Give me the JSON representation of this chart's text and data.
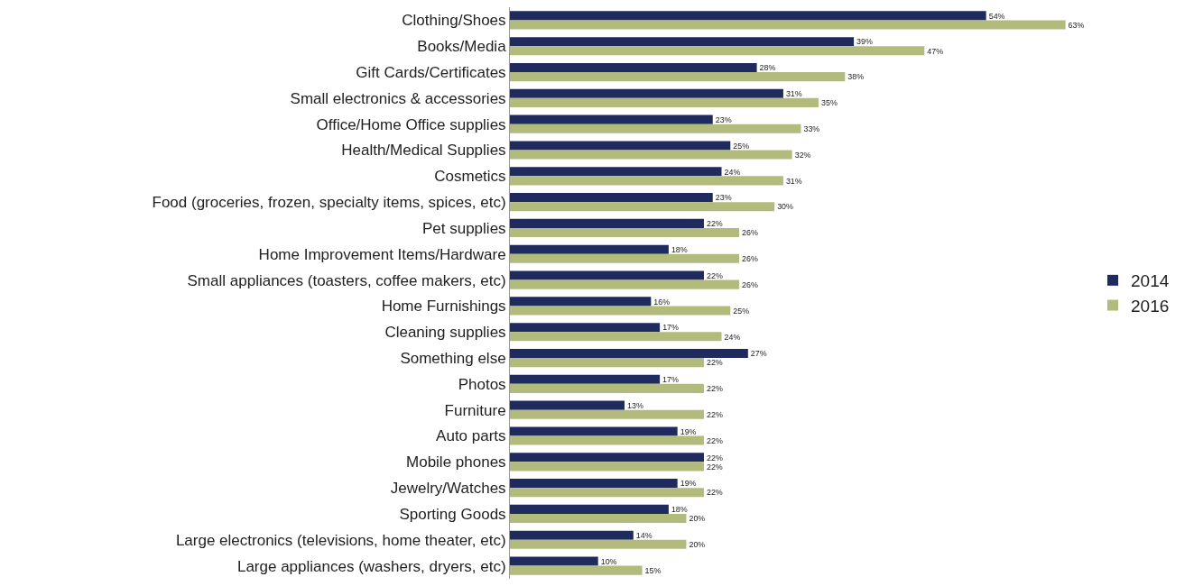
{
  "chart_data": {
    "type": "bar",
    "orientation": "horizontal",
    "categories": [
      "Clothing/Shoes",
      "Books/Media",
      "Gift Cards/Certificates",
      "Small electronics & accessories",
      "Office/Home Office supplies",
      "Health/Medical Supplies",
      "Cosmetics",
      "Food (groceries, frozen, specialty items, spices, etc)",
      "Pet supplies",
      "Home Improvement Items/Hardware",
      "Small appliances (toasters, coffee makers, etc)",
      "Home Furnishings",
      "Cleaning supplies",
      "Something else",
      "Photos",
      "Furniture",
      "Auto parts",
      "Mobile phones",
      "Jewelry/Watches",
      "Sporting Goods",
      "Large electronics (televisions, home theater, etc)",
      "Large appliances (washers, dryers, etc)"
    ],
    "series": [
      {
        "name": "2014",
        "color": "#1f2a5e",
        "values": [
          54,
          39,
          28,
          31,
          23,
          25,
          24,
          23,
          22,
          18,
          22,
          16,
          17,
          27,
          17,
          13,
          19,
          22,
          19,
          18,
          14,
          10
        ],
        "value_labels": [
          "54%",
          "39%",
          "28%",
          "31%",
          "23%",
          "25%",
          "24%",
          "23%",
          "22%",
          "18%",
          "22%",
          "16%",
          "17%",
          "27%",
          "17%",
          "13%",
          "19%",
          "22%",
          "19%",
          "18%",
          "14%",
          "10%"
        ]
      },
      {
        "name": "2016",
        "color": "#b3bb7c",
        "values": [
          63,
          47,
          38,
          35,
          33,
          32,
          31,
          30,
          26,
          26,
          26,
          25,
          24,
          22,
          22,
          22,
          22,
          22,
          22,
          20,
          20,
          15
        ],
        "value_labels": [
          "63%",
          "47%",
          "38%",
          "35%",
          "33%",
          "32%",
          "31%",
          "30%",
          "26%",
          "26%",
          "26%",
          "25%",
          "24%",
          "22%",
          "22%",
          "22%",
          "22%",
          "22%",
          "22%",
          "20%",
          "20%",
          "15%"
        ]
      }
    ],
    "tick_labels": "y",
    "legend": "right"
  }
}
